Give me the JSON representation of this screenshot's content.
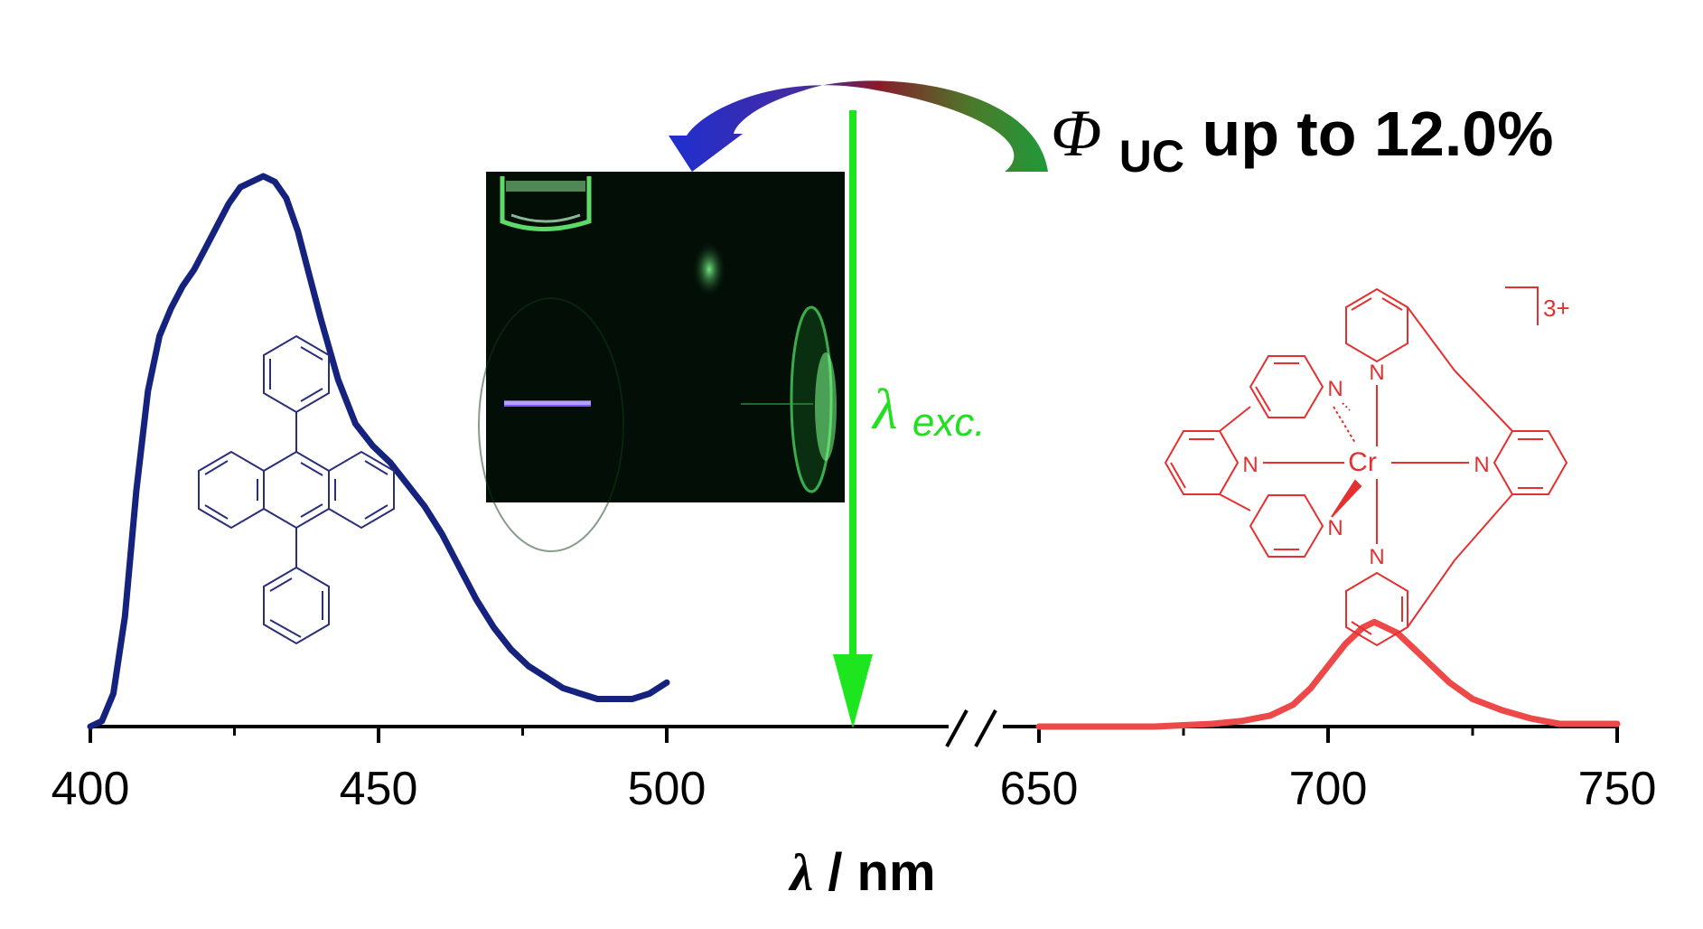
{
  "headline": {
    "symbol": "Φ",
    "subscript": "UC",
    "text": " up to 12.0%"
  },
  "excitation_label": {
    "symbol": "λ",
    "subscript": "exc."
  },
  "complex_charge": "3+",
  "colors": {
    "blue_series": "#15237e",
    "red_series": "#ee4949",
    "excitation_arrow": "#1ee61e",
    "molecule_blue": "#2a2f7a",
    "molecule_red": "#e53030"
  },
  "chart_data": {
    "type": "line",
    "title": "",
    "xlabel": "λ / nm",
    "ylabel": "",
    "axis_break": [
      500,
      650
    ],
    "xlim_segments": [
      [
        400,
        525
      ],
      [
        650,
        750
      ]
    ],
    "x_ticks": [
      {
        "value": 400,
        "label": "400"
      },
      {
        "value": 450,
        "label": "450"
      },
      {
        "value": 500,
        "label": "500"
      },
      {
        "value": 650,
        "label": "650"
      },
      {
        "value": 700,
        "label": "700"
      },
      {
        "value": 750,
        "label": "750"
      }
    ],
    "x_minor_ticks": [
      425,
      475,
      675,
      725
    ],
    "ylim": [
      0,
      1
    ],
    "grid": false,
    "excitation_wavelength": 527,
    "series": [
      {
        "x": [
          400,
          402,
          404,
          406,
          408,
          410,
          412,
          414,
          416,
          418,
          420,
          422,
          424,
          426,
          428,
          430,
          432,
          434,
          436,
          438,
          440,
          443,
          446,
          449,
          452,
          455,
          458,
          461,
          464,
          467,
          470,
          473,
          476,
          479,
          482,
          485,
          488,
          491,
          494,
          497,
          500
        ],
        "y": [
          0.0,
          0.01,
          0.06,
          0.2,
          0.43,
          0.61,
          0.71,
          0.76,
          0.8,
          0.83,
          0.87,
          0.91,
          0.95,
          0.98,
          0.99,
          1.0,
          0.99,
          0.96,
          0.9,
          0.82,
          0.74,
          0.63,
          0.55,
          0.51,
          0.48,
          0.44,
          0.4,
          0.35,
          0.29,
          0.23,
          0.18,
          0.14,
          0.11,
          0.09,
          0.07,
          0.06,
          0.05,
          0.05,
          0.05,
          0.06,
          0.08
        ]
      },
      {
        "x": [
          650,
          660,
          670,
          680,
          685,
          690,
          694,
          697,
          700,
          703,
          706,
          708,
          710,
          712,
          715,
          718,
          721,
          725,
          730,
          735,
          740,
          745,
          750
        ],
        "y": [
          0.0,
          0.0,
          0.0,
          0.005,
          0.01,
          0.02,
          0.04,
          0.07,
          0.11,
          0.15,
          0.18,
          0.19,
          0.18,
          0.17,
          0.14,
          0.11,
          0.08,
          0.05,
          0.03,
          0.015,
          0.005,
          0.005,
          0.005
        ]
      }
    ]
  }
}
